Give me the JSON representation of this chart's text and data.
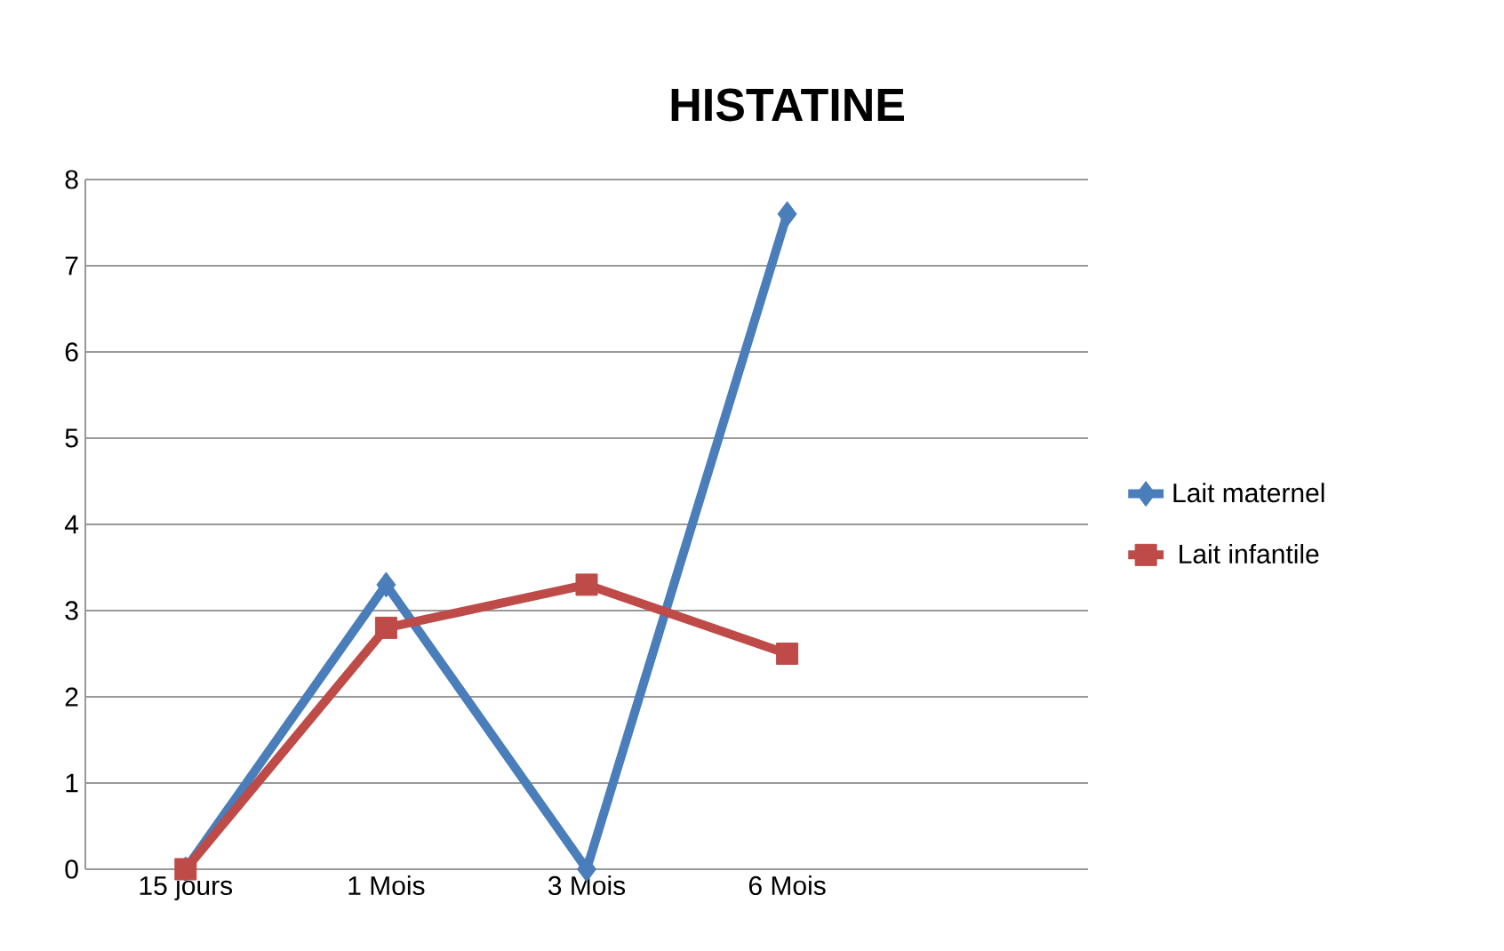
{
  "chart_data": {
    "type": "line",
    "title": "HISTATINE",
    "categories": [
      "15 jours",
      "1 Mois",
      "3 Mois",
      "6 Mois",
      null
    ],
    "series": [
      {
        "name": "Lait maternel",
        "color": "#4a7ebb",
        "marker": "diamond",
        "values": [
          0,
          3.3,
          0,
          7.6,
          null
        ]
      },
      {
        "name": "Lait infantile",
        "color": "#be4b48",
        "marker": "square",
        "values": [
          0,
          2.8,
          3.3,
          2.5,
          null
        ]
      }
    ],
    "ylim": [
      0,
      8
    ],
    "yticks": [
      0,
      1,
      2,
      3,
      4,
      5,
      6,
      7,
      8
    ],
    "grid": "y",
    "legend": "right"
  }
}
